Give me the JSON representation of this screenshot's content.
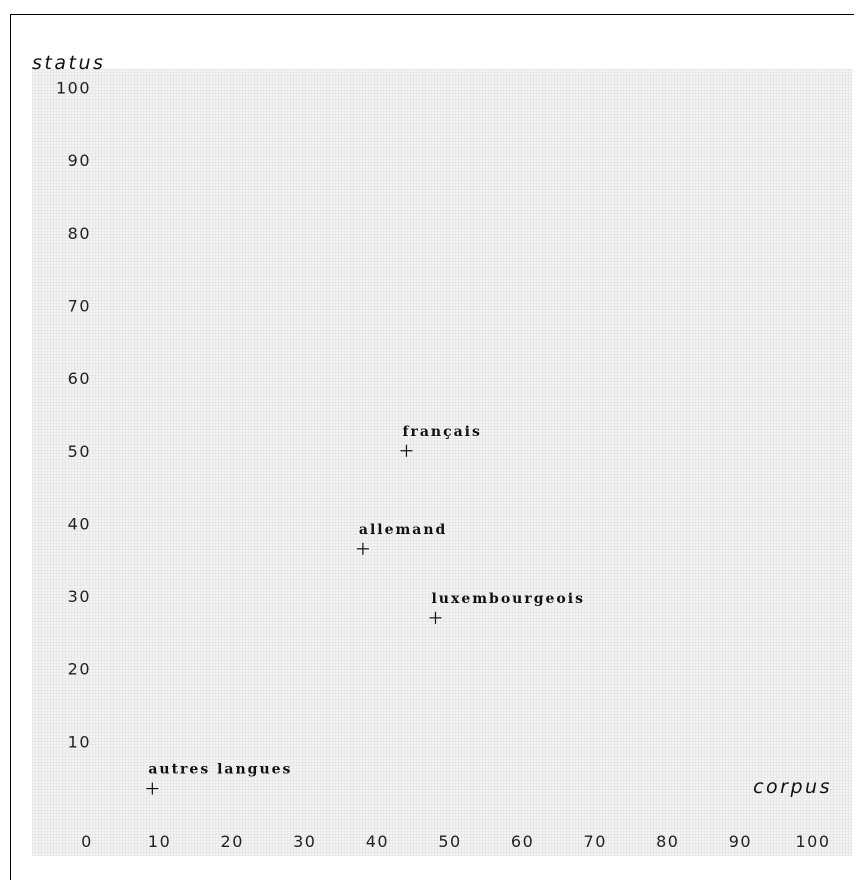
{
  "chart_data": {
    "type": "scatter",
    "title": "",
    "xlabel": "corpus",
    "ylabel": "status",
    "xlim": [
      0,
      100
    ],
    "ylim": [
      0,
      100
    ],
    "x_ticks": [
      0,
      10,
      20,
      30,
      40,
      50,
      60,
      70,
      80,
      90,
      100
    ],
    "y_ticks": [
      0,
      10,
      20,
      30,
      40,
      50,
      60,
      70,
      80,
      90,
      100
    ],
    "grid": false,
    "points": [
      {
        "label": "français",
        "x": 44,
        "y": 50
      },
      {
        "label": "allemand",
        "x": 38,
        "y": 36.5
      },
      {
        "label": "luxembourgeois",
        "x": 48,
        "y": 27
      },
      {
        "label": "autres langues",
        "x": 9,
        "y": 3.5
      }
    ]
  }
}
